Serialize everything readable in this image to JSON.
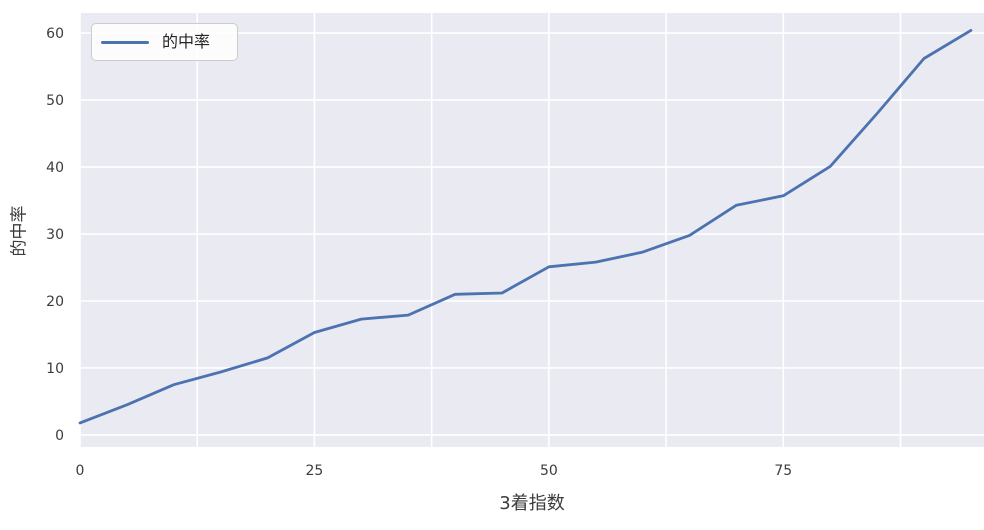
{
  "chart_data": {
    "type": "line",
    "title": "",
    "xlabel": "3着指数",
    "ylabel": "的中率",
    "legend": {
      "position": "upper-left",
      "entries": [
        {
          "label": "的中率",
          "color": "#4c72b0"
        }
      ]
    },
    "x": [
      0,
      5,
      10,
      15,
      20,
      25,
      30,
      35,
      40,
      45,
      50,
      55,
      60,
      65,
      70,
      75,
      80,
      85,
      90,
      95
    ],
    "series": [
      {
        "name": "的中率",
        "values": [
          1.8,
          4.5,
          7.5,
          9.4,
          11.5,
          15.3,
          17.3,
          17.9,
          21.0,
          21.2,
          25.1,
          25.8,
          27.3,
          29.8,
          34.3,
          35.7,
          40.1,
          48.0,
          56.2,
          60.4
        ]
      }
    ],
    "xlim": [
      0,
      96.4
    ],
    "ylim": [
      -1.8,
      63.0
    ],
    "xticks": [
      0,
      25,
      50,
      75
    ],
    "yticks": [
      0,
      10,
      20,
      30,
      40,
      50,
      60
    ],
    "x_gridlines": [
      0,
      12.5,
      25,
      37.5,
      50,
      62.5,
      75,
      87.5
    ],
    "grid": true,
    "style": {
      "line_color": "#4c72b0",
      "plot_bg": "#eaeaf2",
      "grid_color": "#ffffff",
      "tick_text_color": "#3c3c3c",
      "figure_bg": "#ffffff",
      "legend_border": "#cccccc"
    }
  }
}
